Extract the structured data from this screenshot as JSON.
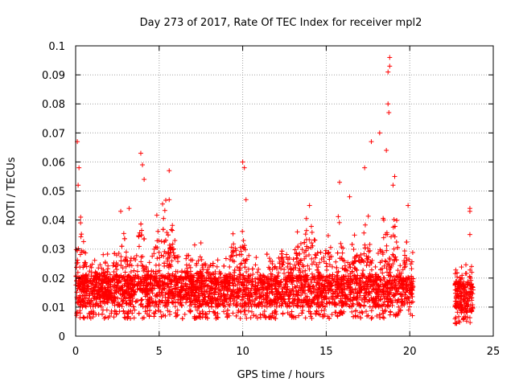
{
  "chart_data": {
    "type": "scatter",
    "title": "Day 273 of 2017, Rate Of TEC Index for receiver mpl2",
    "xlabel": "GPS time / hours",
    "ylabel": "ROTI / TECUs",
    "xlim": [
      0,
      25
    ],
    "ylim": [
      0,
      0.1
    ],
    "xticks": [
      "0",
      "5",
      "10",
      "15",
      "20",
      "25"
    ],
    "yticks": [
      "0",
      "0.01",
      "0.02",
      "0.03",
      "0.04",
      "0.05",
      "0.06",
      "0.07",
      "0.08",
      "0.09",
      "0.1"
    ],
    "grid": true,
    "marker": "plus",
    "color": "#ff0000",
    "data_segments": [
      {
        "x_start": 0.0,
        "x_end": 20.2,
        "typical_range": [
          0.006,
          0.03
        ]
      },
      {
        "x_start": 22.7,
        "x_end": 23.8,
        "typical_range": [
          0.004,
          0.028
        ]
      }
    ],
    "notable_points": [
      {
        "x": 0.1,
        "y": 0.067
      },
      {
        "x": 0.2,
        "y": 0.058
      },
      {
        "x": 0.15,
        "y": 0.052
      },
      {
        "x": 0.3,
        "y": 0.041
      },
      {
        "x": 2.7,
        "y": 0.043
      },
      {
        "x": 3.2,
        "y": 0.044
      },
      {
        "x": 3.9,
        "y": 0.063
      },
      {
        "x": 4.0,
        "y": 0.059
      },
      {
        "x": 4.1,
        "y": 0.054
      },
      {
        "x": 5.6,
        "y": 0.057
      },
      {
        "x": 5.6,
        "y": 0.047
      },
      {
        "x": 10.0,
        "y": 0.06
      },
      {
        "x": 10.1,
        "y": 0.058
      },
      {
        "x": 10.2,
        "y": 0.047
      },
      {
        "x": 14.0,
        "y": 0.045
      },
      {
        "x": 15.8,
        "y": 0.053
      },
      {
        "x": 16.4,
        "y": 0.048
      },
      {
        "x": 17.3,
        "y": 0.058
      },
      {
        "x": 17.7,
        "y": 0.067
      },
      {
        "x": 18.2,
        "y": 0.07
      },
      {
        "x": 18.6,
        "y": 0.064
      },
      {
        "x": 18.7,
        "y": 0.08
      },
      {
        "x": 18.75,
        "y": 0.077
      },
      {
        "x": 18.7,
        "y": 0.091
      },
      {
        "x": 18.8,
        "y": 0.093
      },
      {
        "x": 18.8,
        "y": 0.096
      },
      {
        "x": 19.1,
        "y": 0.055
      },
      {
        "x": 19.0,
        "y": 0.052
      },
      {
        "x": 19.9,
        "y": 0.045
      },
      {
        "x": 23.6,
        "y": 0.044
      },
      {
        "x": 23.6,
        "y": 0.043
      },
      {
        "x": 23.6,
        "y": 0.035
      },
      {
        "x": 23.7,
        "y": 0.024
      }
    ]
  }
}
